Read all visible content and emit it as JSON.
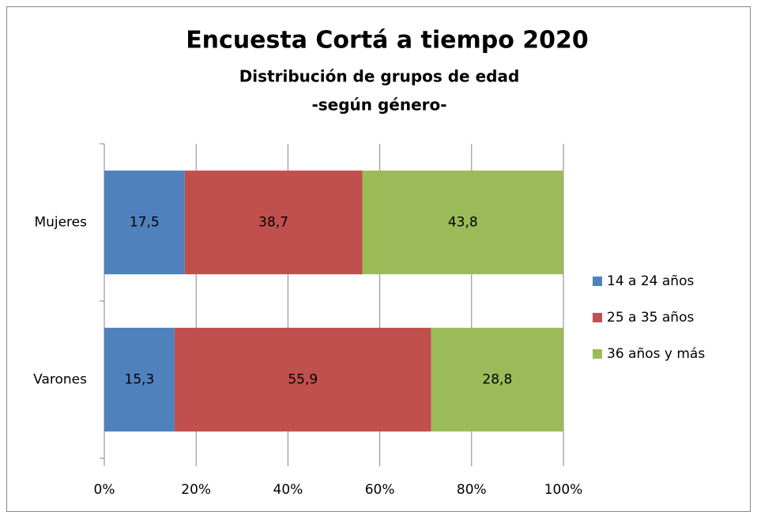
{
  "chart_data": {
    "type": "stacked-barh",
    "title": "Encuesta Cortá a tiempo 2020",
    "subtitle": [
      "Distribución de grupos de edad",
      "-según género-"
    ],
    "categories": [
      "Mujeres",
      "Varones"
    ],
    "series": [
      {
        "name": "14 a 24 años",
        "color": "#4f81bd",
        "values": [
          17.5,
          15.3
        ],
        "value_labels": [
          "17,5",
          "15,3"
        ]
      },
      {
        "name": "25 a 35 años",
        "color": "#c0504d",
        "values": [
          38.7,
          55.9
        ],
        "value_labels": [
          "38,7",
          "55,9"
        ]
      },
      {
        "name": "36 años y más",
        "color": "#9bbb59",
        "values": [
          43.8,
          28.8
        ],
        "value_labels": [
          "43,8",
          "28,8"
        ]
      }
    ],
    "xlim": [
      0,
      100
    ],
    "xticks": [
      {
        "value": 0,
        "label": "0%"
      },
      {
        "value": 20,
        "label": "20%"
      },
      {
        "value": 40,
        "label": "40%"
      },
      {
        "value": 60,
        "label": "60%"
      },
      {
        "value": 80,
        "label": "80%"
      },
      {
        "value": 100,
        "label": "100%"
      }
    ],
    "grid": true,
    "legend": "right"
  }
}
